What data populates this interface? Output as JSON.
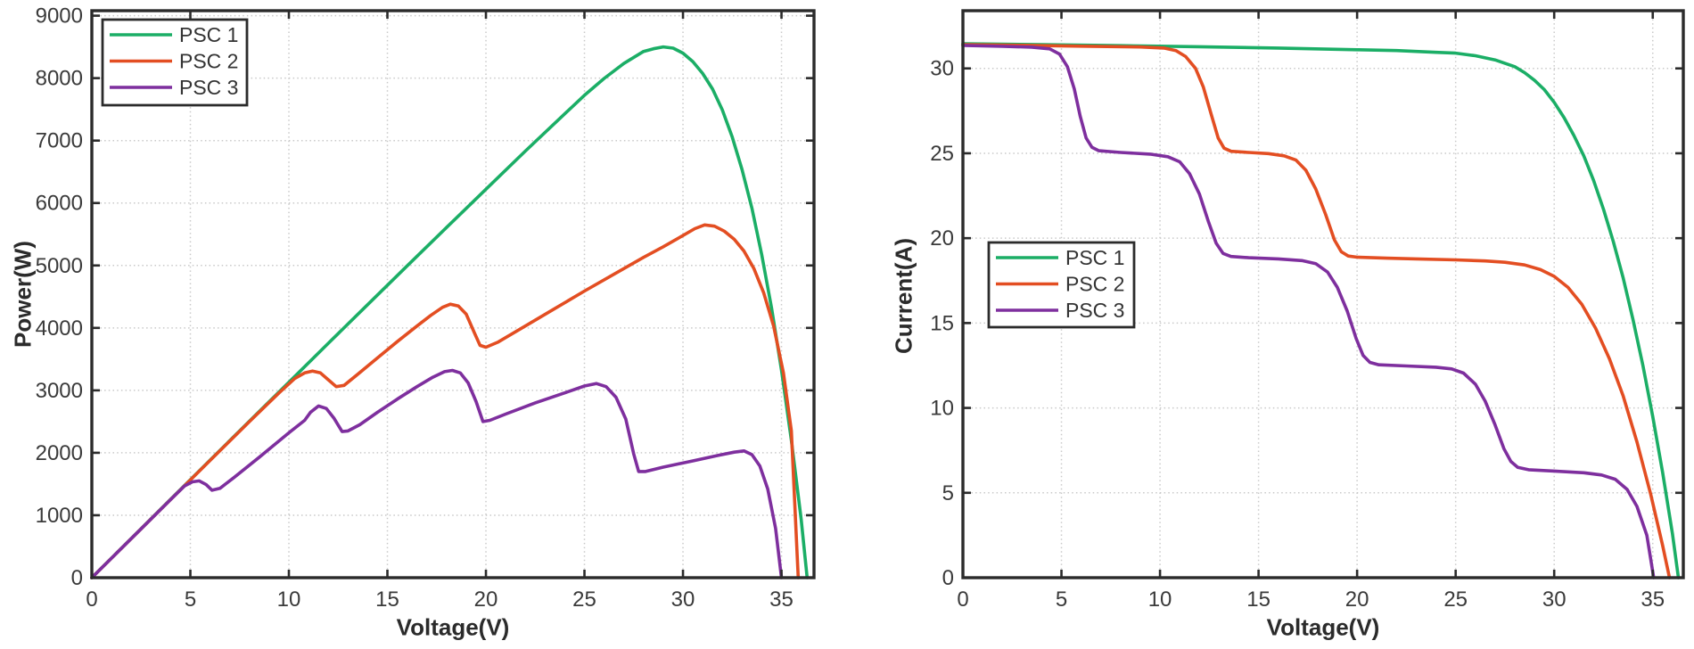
{
  "figure": {
    "background": "#ffffff",
    "axis_color": "#2b2b2b",
    "grid_color": "#c9c9c9",
    "tick_label_color": "#3a3a3a",
    "legend_border_color": "#2b2b2b",
    "series_colors": {
      "psc1": "#1bae66",
      "psc2": "#e34e22",
      "psc3": "#7e2f9e"
    }
  },
  "chart_data": [
    {
      "type": "line",
      "title": "",
      "xlabel": "Voltage(V)",
      "ylabel": "Power(W)",
      "xlim": [
        0,
        36.65
      ],
      "ylim": [
        0,
        9080
      ],
      "x_ticks": [
        0,
        5,
        10,
        15,
        20,
        25,
        30,
        35
      ],
      "y_ticks": [
        0,
        1000,
        2000,
        3000,
        4000,
        5000,
        6000,
        7000,
        8000,
        9000
      ],
      "grid": true,
      "legend_position": "top-left",
      "series": [
        {
          "name": "PSC 1",
          "color_key": "psc1",
          "points": [
            [
              0,
              0
            ],
            [
              2,
              628
            ],
            [
              4,
              1256
            ],
            [
              6,
              1882
            ],
            [
              8,
              2507
            ],
            [
              10,
              3130
            ],
            [
              12,
              3753
            ],
            [
              14,
              4373
            ],
            [
              16,
              4992
            ],
            [
              18,
              5608
            ],
            [
              20,
              6220
            ],
            [
              22,
              6831
            ],
            [
              24,
              7428
            ],
            [
              25,
              7725
            ],
            [
              26,
              7995
            ],
            [
              27,
              8235
            ],
            [
              28,
              8428
            ],
            [
              28.5,
              8470
            ],
            [
              29,
              8500
            ],
            [
              29.5,
              8480
            ],
            [
              30,
              8400
            ],
            [
              30.5,
              8265
            ],
            [
              31,
              8075
            ],
            [
              31.5,
              7825
            ],
            [
              32,
              7490
            ],
            [
              32.5,
              7055
            ],
            [
              33,
              6535
            ],
            [
              33.5,
              5915
            ],
            [
              34,
              5170
            ],
            [
              34.5,
              4310
            ],
            [
              35,
              3325
            ],
            [
              35.5,
              2200
            ],
            [
              36,
              935
            ],
            [
              36.3,
              0
            ]
          ]
        },
        {
          "name": "PSC 2",
          "color_key": "psc2",
          "points": [
            [
              0,
              0
            ],
            [
              2,
              626
            ],
            [
              4,
              1252
            ],
            [
              6,
              1878
            ],
            [
              8,
              2500
            ],
            [
              9.5,
              2960
            ],
            [
              10.3,
              3190
            ],
            [
              10.8,
              3280
            ],
            [
              11.2,
              3310
            ],
            [
              11.6,
              3280
            ],
            [
              12,
              3170
            ],
            [
              12.4,
              3060
            ],
            [
              12.8,
              3080
            ],
            [
              13.5,
              3260
            ],
            [
              14.5,
              3520
            ],
            [
              15.5,
              3780
            ],
            [
              16.5,
              4030
            ],
            [
              17.2,
              4200
            ],
            [
              17.8,
              4330
            ],
            [
              18.2,
              4380
            ],
            [
              18.6,
              4350
            ],
            [
              19,
              4220
            ],
            [
              19.4,
              3930
            ],
            [
              19.7,
              3720
            ],
            [
              20,
              3690
            ],
            [
              20.6,
              3770
            ],
            [
              22,
              4030
            ],
            [
              23.5,
              4310
            ],
            [
              25,
              4590
            ],
            [
              26.5,
              4860
            ],
            [
              28,
              5130
            ],
            [
              29,
              5300
            ],
            [
              30,
              5480
            ],
            [
              30.6,
              5590
            ],
            [
              31.1,
              5650
            ],
            [
              31.6,
              5630
            ],
            [
              32.1,
              5550
            ],
            [
              32.6,
              5420
            ],
            [
              33.1,
              5230
            ],
            [
              33.6,
              4950
            ],
            [
              34.1,
              4560
            ],
            [
              34.6,
              4030
            ],
            [
              35.1,
              3280
            ],
            [
              35.5,
              2350
            ],
            [
              35.85,
              0
            ]
          ]
        },
        {
          "name": "PSC 3",
          "color_key": "psc3",
          "points": [
            [
              0,
              0
            ],
            [
              2,
              626
            ],
            [
              4,
              1250
            ],
            [
              4.7,
              1468
            ],
            [
              5.1,
              1535
            ],
            [
              5.45,
              1550
            ],
            [
              5.8,
              1490
            ],
            [
              6.1,
              1400
            ],
            [
              6.5,
              1430
            ],
            [
              7.2,
              1600
            ],
            [
              8.5,
              1930
            ],
            [
              10,
              2320
            ],
            [
              10.8,
              2520
            ],
            [
              11.1,
              2650
            ],
            [
              11.5,
              2750
            ],
            [
              11.9,
              2710
            ],
            [
              12.3,
              2550
            ],
            [
              12.7,
              2340
            ],
            [
              13,
              2350
            ],
            [
              13.6,
              2450
            ],
            [
              14.5,
              2650
            ],
            [
              15.5,
              2860
            ],
            [
              16.5,
              3060
            ],
            [
              17.3,
              3210
            ],
            [
              17.9,
              3300
            ],
            [
              18.3,
              3320
            ],
            [
              18.7,
              3280
            ],
            [
              19.1,
              3120
            ],
            [
              19.5,
              2820
            ],
            [
              19.85,
              2500
            ],
            [
              20.2,
              2520
            ],
            [
              21,
              2620
            ],
            [
              22.5,
              2800
            ],
            [
              24,
              2960
            ],
            [
              25,
              3070
            ],
            [
              25.6,
              3110
            ],
            [
              26.1,
              3060
            ],
            [
              26.6,
              2890
            ],
            [
              27.1,
              2540
            ],
            [
              27.5,
              1980
            ],
            [
              27.75,
              1700
            ],
            [
              28.1,
              1700
            ],
            [
              29,
              1770
            ],
            [
              30.5,
              1870
            ],
            [
              31.8,
              1960
            ],
            [
              32.6,
              2010
            ],
            [
              33.1,
              2030
            ],
            [
              33.5,
              1970
            ],
            [
              33.9,
              1790
            ],
            [
              34.3,
              1420
            ],
            [
              34.7,
              790
            ],
            [
              35,
              0
            ]
          ]
        }
      ]
    },
    {
      "type": "line",
      "title": "",
      "xlabel": "Voltage(V)",
      "ylabel": "Current(A)",
      "xlim": [
        0,
        36.55
      ],
      "ylim": [
        0,
        33.4
      ],
      "x_ticks": [
        0,
        5,
        10,
        15,
        20,
        25,
        30,
        35
      ],
      "y_ticks": [
        0,
        5,
        10,
        15,
        20,
        25,
        30
      ],
      "grid": true,
      "legend_position": "middle-left",
      "series": [
        {
          "name": "PSC 1",
          "color_key": "psc1",
          "points": [
            [
              0,
              31.45
            ],
            [
              4,
              31.4
            ],
            [
              8,
              31.34
            ],
            [
              12,
              31.28
            ],
            [
              16,
              31.2
            ],
            [
              20,
              31.1
            ],
            [
              22,
              31.05
            ],
            [
              24,
              30.95
            ],
            [
              25,
              30.9
            ],
            [
              26,
              30.75
            ],
            [
              27,
              30.5
            ],
            [
              28,
              30.1
            ],
            [
              28.5,
              29.75
            ],
            [
              29,
              29.3
            ],
            [
              29.5,
              28.75
            ],
            [
              30,
              28
            ],
            [
              30.5,
              27.1
            ],
            [
              31,
              26.05
            ],
            [
              31.5,
              24.85
            ],
            [
              32,
              23.4
            ],
            [
              32.5,
              21.7
            ],
            [
              33,
              19.8
            ],
            [
              33.5,
              17.65
            ],
            [
              34,
              15.2
            ],
            [
              34.5,
              12.5
            ],
            [
              35,
              9.5
            ],
            [
              35.5,
              6.2
            ],
            [
              36,
              2.6
            ],
            [
              36.3,
              0
            ]
          ]
        },
        {
          "name": "PSC 2",
          "color_key": "psc2",
          "points": [
            [
              0,
              31.4
            ],
            [
              3,
              31.36
            ],
            [
              6,
              31.31
            ],
            [
              9,
              31.26
            ],
            [
              10.2,
              31.2
            ],
            [
              10.8,
              31.05
            ],
            [
              11.3,
              30.7
            ],
            [
              11.8,
              30
            ],
            [
              12.2,
              28.9
            ],
            [
              12.6,
              27.3
            ],
            [
              12.95,
              25.9
            ],
            [
              13.25,
              25.3
            ],
            [
              13.6,
              25.12
            ],
            [
              14.5,
              25.05
            ],
            [
              15.5,
              24.98
            ],
            [
              16.3,
              24.85
            ],
            [
              16.9,
              24.6
            ],
            [
              17.4,
              24
            ],
            [
              17.9,
              22.9
            ],
            [
              18.4,
              21.4
            ],
            [
              18.85,
              19.9
            ],
            [
              19.2,
              19.2
            ],
            [
              19.55,
              18.95
            ],
            [
              20,
              18.88
            ],
            [
              21.5,
              18.82
            ],
            [
              23,
              18.78
            ],
            [
              25,
              18.72
            ],
            [
              26.5,
              18.66
            ],
            [
              27.5,
              18.58
            ],
            [
              28.5,
              18.42
            ],
            [
              29.3,
              18.15
            ],
            [
              30,
              17.75
            ],
            [
              30.7,
              17.1
            ],
            [
              31.4,
              16.1
            ],
            [
              32.1,
              14.7
            ],
            [
              32.8,
              12.9
            ],
            [
              33.5,
              10.7
            ],
            [
              34.2,
              8
            ],
            [
              34.9,
              4.9
            ],
            [
              35.5,
              1.9
            ],
            [
              35.85,
              0
            ]
          ]
        },
        {
          "name": "PSC 3",
          "color_key": "psc3",
          "points": [
            [
              0,
              31.35
            ],
            [
              2,
              31.3
            ],
            [
              3.5,
              31.25
            ],
            [
              4.4,
              31.15
            ],
            [
              4.9,
              30.85
            ],
            [
              5.3,
              30.1
            ],
            [
              5.65,
              28.8
            ],
            [
              5.95,
              27.2
            ],
            [
              6.25,
              25.9
            ],
            [
              6.55,
              25.35
            ],
            [
              6.9,
              25.15
            ],
            [
              8,
              25.05
            ],
            [
              9.5,
              24.95
            ],
            [
              10.4,
              24.8
            ],
            [
              11,
              24.5
            ],
            [
              11.5,
              23.8
            ],
            [
              12,
              22.6
            ],
            [
              12.45,
              21
            ],
            [
              12.85,
              19.7
            ],
            [
              13.2,
              19.1
            ],
            [
              13.6,
              18.92
            ],
            [
              14.5,
              18.85
            ],
            [
              16,
              18.78
            ],
            [
              17.2,
              18.68
            ],
            [
              17.9,
              18.5
            ],
            [
              18.5,
              18
            ],
            [
              19,
              17.1
            ],
            [
              19.5,
              15.7
            ],
            [
              19.95,
              14.1
            ],
            [
              20.3,
              13.1
            ],
            [
              20.65,
              12.68
            ],
            [
              21.1,
              12.54
            ],
            [
              22.5,
              12.47
            ],
            [
              24,
              12.4
            ],
            [
              24.8,
              12.3
            ],
            [
              25.4,
              12.05
            ],
            [
              26,
              11.4
            ],
            [
              26.5,
              10.4
            ],
            [
              27,
              9
            ],
            [
              27.45,
              7.6
            ],
            [
              27.8,
              6.85
            ],
            [
              28.15,
              6.5
            ],
            [
              28.7,
              6.36
            ],
            [
              30,
              6.28
            ],
            [
              31.5,
              6.18
            ],
            [
              32.4,
              6.05
            ],
            [
              33.1,
              5.8
            ],
            [
              33.7,
              5.2
            ],
            [
              34.2,
              4.2
            ],
            [
              34.7,
              2.5
            ],
            [
              35.05,
              0
            ]
          ]
        }
      ]
    }
  ]
}
